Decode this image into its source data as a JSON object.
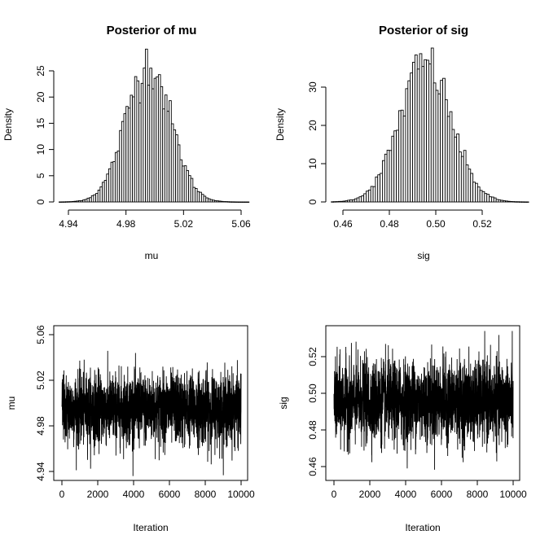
{
  "chart_data": [
    {
      "type": "bar",
      "subtype": "histogram",
      "title": "Posterior of mu",
      "xlabel": "mu",
      "ylabel": "Density",
      "xlim": [
        4.93,
        5.065
      ],
      "ylim": [
        0,
        27
      ],
      "xticks": [
        "4.94",
        "4.98",
        "5.02",
        "5.06"
      ],
      "yticks": [
        "0",
        "5",
        "10",
        "15",
        "20",
        "25"
      ],
      "bin_width": 0.0015,
      "bins_start": 4.9335,
      "mean": 4.9955,
      "sd": 0.0155,
      "peak_density": 26.5,
      "grid": false
    },
    {
      "type": "bar",
      "subtype": "histogram",
      "title": "Posterior of sig",
      "xlabel": "sig",
      "ylabel": "Density",
      "xlim": [
        0.45,
        0.54
      ],
      "ylim": [
        0,
        37
      ],
      "xticks": [
        "0.46",
        "0.48",
        "0.50",
        "0.52"
      ],
      "yticks": [
        "0",
        "10",
        "20",
        "30"
      ],
      "bin_width": 0.001,
      "bins_start": 0.455,
      "mean": 0.4955,
      "sd": 0.011,
      "peak_density": 36.3,
      "grid": false
    },
    {
      "type": "line",
      "subtype": "trace",
      "title": "",
      "xlabel": "Iteration",
      "ylabel": "mu",
      "xlim": [
        0,
        10000
      ],
      "ylim": [
        4.935,
        5.062
      ],
      "xticks": [
        "0",
        "2000",
        "4000",
        "6000",
        "8000",
        "10000"
      ],
      "yticks": [
        "4.94",
        "4.98",
        "5.02",
        "5.06"
      ],
      "n_iterations": 10000,
      "mean": 4.995,
      "sd": 0.0155,
      "min": 4.936,
      "max": 5.06,
      "grid": false
    },
    {
      "type": "line",
      "subtype": "trace",
      "title": "",
      "xlabel": "Iteration",
      "ylabel": "sig",
      "xlim": [
        0,
        10000
      ],
      "ylim": [
        0.455,
        0.535
      ],
      "xticks": [
        "0",
        "2000",
        "4000",
        "6000",
        "8000",
        "10000"
      ],
      "yticks": [
        "0.46",
        "0.48",
        "0.50",
        "0.52"
      ],
      "n_iterations": 10000,
      "mean": 0.4955,
      "sd": 0.011,
      "min": 0.456,
      "max": 0.534,
      "grid": false
    }
  ]
}
